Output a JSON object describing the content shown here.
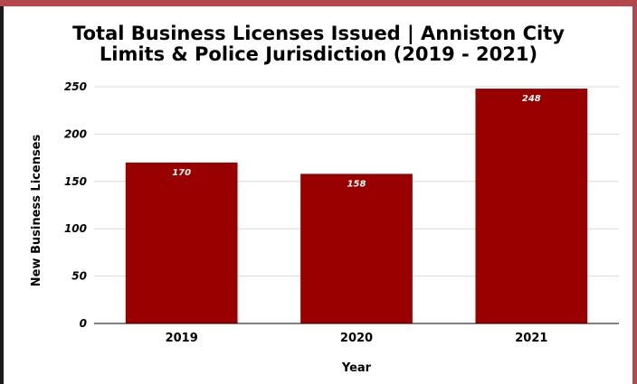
{
  "chart_data": {
    "type": "bar",
    "title_line1": "Total Business Licenses Issued | Anniston City",
    "title_line2": "Limits & Police Jurisdiction (2019 - 2021)",
    "xlabel": "Year",
    "ylabel": "New Business Licenses",
    "categories": [
      "2019",
      "2020",
      "2021"
    ],
    "values": [
      170,
      158,
      248
    ],
    "data_labels": [
      "170",
      "158",
      "248"
    ],
    "ylim": [
      0,
      250
    ],
    "yticks": [
      "0",
      "50",
      "100",
      "150",
      "200",
      "250"
    ],
    "grid": true,
    "legend": "none",
    "bar_color": "#990000",
    "grid_color": "#d9d9d9",
    "border_color": "#b2484b"
  }
}
